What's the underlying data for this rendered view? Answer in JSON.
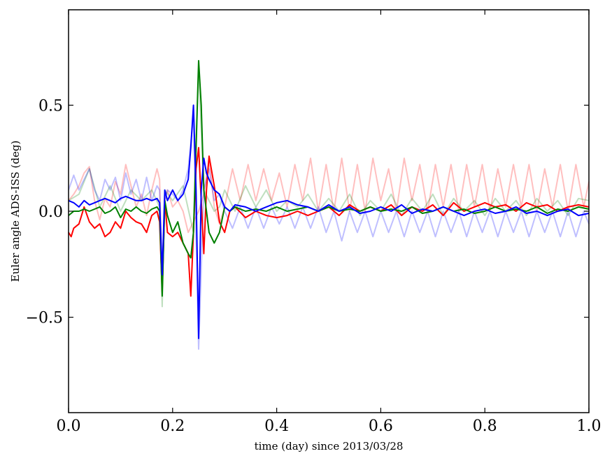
{
  "chart_data": {
    "type": "line",
    "title": "",
    "xlabel": "time (day) since 2013/03/28",
    "ylabel": "Euler angle ADS-ISS (deg)",
    "xlim": [
      0.0,
      1.0
    ],
    "ylim": [
      -0.95,
      0.95
    ],
    "xticks": [
      0.0,
      0.2,
      0.4,
      0.6,
      0.8,
      1.0
    ],
    "xtick_labels": [
      "0.0",
      "0.2",
      "0.4",
      "0.6",
      "0.8",
      "1.0"
    ],
    "yticks": [
      0.5,
      0.0,
      -0.5
    ],
    "ytick_labels": [
      "0.5",
      "0.0",
      "−0.5"
    ],
    "grid": false,
    "legend": "none",
    "series": [
      {
        "color": "#ff0000",
        "faded": true,
        "x": [
          0.0,
          0.01,
          0.02,
          0.03,
          0.04,
          0.05,
          0.06,
          0.07,
          0.08,
          0.09,
          0.1,
          0.11,
          0.12,
          0.13,
          0.14,
          0.15,
          0.16,
          0.17,
          0.175,
          0.18,
          0.185,
          0.19,
          0.2,
          0.21,
          0.22,
          0.23,
          0.24,
          0.25,
          0.26,
          0.27,
          0.28,
          0.29,
          0.3,
          0.315,
          0.33,
          0.345,
          0.36,
          0.375,
          0.39,
          0.405,
          0.42,
          0.435,
          0.45,
          0.465,
          0.48,
          0.495,
          0.51,
          0.525,
          0.54,
          0.555,
          0.57,
          0.585,
          0.6,
          0.615,
          0.63,
          0.645,
          0.66,
          0.675,
          0.69,
          0.705,
          0.72,
          0.735,
          0.75,
          0.765,
          0.78,
          0.795,
          0.81,
          0.825,
          0.84,
          0.855,
          0.87,
          0.885,
          0.9,
          0.915,
          0.93,
          0.945,
          0.96,
          0.975,
          0.99,
          1.0
        ],
        "y": [
          0.05,
          0.08,
          0.12,
          0.18,
          0.21,
          0.05,
          -0.04,
          0.06,
          0.02,
          0.14,
          0.08,
          0.22,
          0.12,
          0.02,
          0.08,
          -0.02,
          0.1,
          0.2,
          0.15,
          -0.35,
          0.05,
          0.1,
          0.02,
          0.05,
          0.0,
          -0.1,
          -0.05,
          0.0,
          0.08,
          0.25,
          0.02,
          -0.06,
          0.02,
          0.2,
          0.05,
          0.22,
          0.05,
          0.2,
          0.05,
          0.18,
          0.02,
          0.22,
          0.05,
          0.25,
          0.0,
          0.22,
          0.0,
          0.25,
          0.0,
          0.22,
          0.0,
          0.25,
          0.05,
          0.2,
          0.0,
          0.25,
          0.05,
          0.22,
          0.0,
          0.22,
          0.02,
          0.22,
          0.0,
          0.22,
          0.02,
          0.22,
          0.0,
          0.2,
          0.02,
          0.22,
          0.02,
          0.22,
          0.0,
          0.2,
          0.02,
          0.22,
          0.0,
          0.22,
          0.02,
          0.14
        ]
      },
      {
        "color": "#008000",
        "faded": true,
        "x": [
          0.0,
          0.02,
          0.04,
          0.06,
          0.08,
          0.1,
          0.12,
          0.14,
          0.16,
          0.175,
          0.18,
          0.185,
          0.2,
          0.22,
          0.24,
          0.25,
          0.26,
          0.27,
          0.28,
          0.29,
          0.3,
          0.32,
          0.34,
          0.36,
          0.38,
          0.4,
          0.42,
          0.44,
          0.46,
          0.48,
          0.5,
          0.52,
          0.54,
          0.56,
          0.58,
          0.6,
          0.62,
          0.64,
          0.66,
          0.68,
          0.7,
          0.72,
          0.74,
          0.76,
          0.78,
          0.8,
          0.82,
          0.84,
          0.86,
          0.88,
          0.9,
          0.92,
          0.94,
          0.96,
          0.98,
          1.0
        ],
        "y": [
          0.05,
          0.08,
          0.2,
          0.02,
          0.12,
          0.0,
          0.1,
          0.05,
          0.1,
          0.02,
          -0.45,
          0.1,
          0.05,
          0.12,
          -0.1,
          0.68,
          0.1,
          0.05,
          0.0,
          0.02,
          0.1,
          0.0,
          0.12,
          0.02,
          0.1,
          0.0,
          0.05,
          0.02,
          0.08,
          0.0,
          0.06,
          0.0,
          0.08,
          -0.02,
          0.05,
          0.0,
          0.08,
          -0.02,
          0.06,
          0.0,
          0.08,
          -0.02,
          0.06,
          0.0,
          0.05,
          -0.02,
          0.06,
          0.0,
          0.05,
          -0.02,
          0.06,
          0.0,
          0.05,
          -0.02,
          0.06,
          0.05
        ]
      },
      {
        "color": "#0000ff",
        "faded": true,
        "x": [
          0.0,
          0.01,
          0.02,
          0.03,
          0.04,
          0.05,
          0.06,
          0.07,
          0.08,
          0.09,
          0.1,
          0.11,
          0.12,
          0.13,
          0.14,
          0.15,
          0.16,
          0.17,
          0.175,
          0.18,
          0.185,
          0.19,
          0.2,
          0.21,
          0.22,
          0.23,
          0.24,
          0.25,
          0.26,
          0.27,
          0.28,
          0.29,
          0.3,
          0.315,
          0.33,
          0.345,
          0.36,
          0.375,
          0.39,
          0.405,
          0.42,
          0.435,
          0.45,
          0.465,
          0.48,
          0.495,
          0.51,
          0.525,
          0.54,
          0.555,
          0.57,
          0.585,
          0.6,
          0.615,
          0.63,
          0.645,
          0.66,
          0.675,
          0.69,
          0.705,
          0.72,
          0.735,
          0.75,
          0.765,
          0.78,
          0.795,
          0.81,
          0.825,
          0.84,
          0.855,
          0.87,
          0.885,
          0.9,
          0.915,
          0.93,
          0.945,
          0.96,
          0.975,
          0.99,
          1.0
        ],
        "y": [
          0.1,
          0.17,
          0.1,
          0.15,
          0.2,
          0.1,
          0.05,
          0.15,
          0.1,
          0.16,
          0.05,
          0.18,
          0.08,
          0.15,
          0.05,
          0.16,
          0.05,
          0.12,
          0.1,
          -0.3,
          0.05,
          0.1,
          0.08,
          0.05,
          0.1,
          0.2,
          0.45,
          -0.65,
          0.1,
          0.2,
          0.05,
          0.08,
          0.0,
          -0.08,
          0.02,
          -0.08,
          0.02,
          -0.08,
          0.02,
          -0.06,
          0.02,
          -0.08,
          0.02,
          -0.08,
          0.02,
          -0.1,
          0.0,
          -0.14,
          0.0,
          -0.1,
          0.0,
          -0.12,
          0.0,
          -0.1,
          0.0,
          -0.12,
          0.0,
          -0.1,
          0.0,
          -0.12,
          0.0,
          -0.1,
          0.0,
          -0.12,
          0.0,
          -0.1,
          0.0,
          -0.12,
          0.0,
          -0.1,
          0.0,
          -0.12,
          0.0,
          -0.1,
          0.0,
          -0.12,
          0.0,
          -0.12,
          0.0,
          -0.06
        ]
      },
      {
        "color": "#ff0000",
        "faded": false,
        "x": [
          0.0,
          0.005,
          0.01,
          0.02,
          0.03,
          0.04,
          0.05,
          0.06,
          0.07,
          0.08,
          0.09,
          0.1,
          0.11,
          0.12,
          0.13,
          0.14,
          0.15,
          0.16,
          0.17,
          0.175,
          0.18,
          0.185,
          0.19,
          0.2,
          0.21,
          0.22,
          0.23,
          0.235,
          0.24,
          0.245,
          0.25,
          0.26,
          0.265,
          0.27,
          0.28,
          0.29,
          0.3,
          0.31,
          0.32,
          0.34,
          0.36,
          0.38,
          0.4,
          0.42,
          0.44,
          0.46,
          0.48,
          0.5,
          0.52,
          0.54,
          0.56,
          0.58,
          0.6,
          0.62,
          0.64,
          0.66,
          0.68,
          0.7,
          0.72,
          0.74,
          0.76,
          0.78,
          0.8,
          0.82,
          0.84,
          0.86,
          0.88,
          0.9,
          0.92,
          0.94,
          0.96,
          0.98,
          1.0
        ],
        "y": [
          -0.1,
          -0.12,
          -0.08,
          -0.06,
          0.02,
          -0.05,
          -0.08,
          -0.06,
          -0.12,
          -0.1,
          -0.05,
          -0.08,
          0.0,
          -0.03,
          -0.05,
          -0.06,
          -0.1,
          -0.02,
          0.0,
          -0.05,
          -0.38,
          0.05,
          -0.1,
          -0.12,
          -0.1,
          -0.15,
          -0.2,
          -0.4,
          -0.1,
          0.2,
          0.3,
          -0.2,
          0.1,
          0.26,
          0.12,
          -0.05,
          -0.1,
          0.0,
          0.02,
          -0.03,
          0.0,
          -0.02,
          -0.03,
          -0.02,
          0.0,
          -0.02,
          0.0,
          0.02,
          -0.02,
          0.03,
          0.0,
          0.02,
          0.0,
          0.03,
          -0.02,
          0.02,
          0.0,
          0.03,
          -0.02,
          0.04,
          0.0,
          0.02,
          0.04,
          0.02,
          0.03,
          0.0,
          0.04,
          0.02,
          0.03,
          0.0,
          0.02,
          0.03,
          0.02
        ]
      },
      {
        "color": "#008000",
        "faded": false,
        "x": [
          0.0,
          0.01,
          0.02,
          0.03,
          0.04,
          0.05,
          0.06,
          0.07,
          0.08,
          0.09,
          0.1,
          0.11,
          0.12,
          0.13,
          0.14,
          0.15,
          0.16,
          0.17,
          0.175,
          0.18,
          0.185,
          0.19,
          0.2,
          0.21,
          0.22,
          0.23,
          0.235,
          0.24,
          0.245,
          0.25,
          0.255,
          0.26,
          0.265,
          0.27,
          0.28,
          0.29,
          0.3,
          0.31,
          0.32,
          0.34,
          0.36,
          0.38,
          0.4,
          0.42,
          0.44,
          0.46,
          0.48,
          0.5,
          0.52,
          0.54,
          0.56,
          0.58,
          0.6,
          0.62,
          0.64,
          0.66,
          0.68,
          0.7,
          0.72,
          0.74,
          0.76,
          0.78,
          0.8,
          0.82,
          0.84,
          0.86,
          0.88,
          0.9,
          0.92,
          0.94,
          0.96,
          0.98,
          1.0
        ],
        "y": [
          -0.02,
          0.0,
          0.0,
          0.01,
          0.0,
          0.01,
          0.02,
          -0.01,
          0.0,
          0.02,
          -0.03,
          0.01,
          0.0,
          0.02,
          0.0,
          -0.01,
          0.01,
          0.02,
          0.0,
          -0.4,
          0.05,
          -0.02,
          -0.1,
          -0.05,
          -0.15,
          -0.2,
          -0.22,
          -0.1,
          0.3,
          0.71,
          0.5,
          0.1,
          0.0,
          -0.1,
          -0.15,
          -0.1,
          0.02,
          0.0,
          0.02,
          0.0,
          0.01,
          0.0,
          0.02,
          0.0,
          0.01,
          0.02,
          0.0,
          0.02,
          0.0,
          0.01,
          0.0,
          0.02,
          0.0,
          0.01,
          0.0,
          0.02,
          -0.01,
          0.0,
          0.02,
          0.0,
          0.01,
          -0.01,
          0.0,
          0.02,
          0.0,
          0.01,
          0.0,
          0.02,
          -0.01,
          0.01,
          0.0,
          0.02,
          0.01
        ]
      },
      {
        "color": "#0000ff",
        "faded": false,
        "x": [
          0.0,
          0.01,
          0.02,
          0.03,
          0.04,
          0.05,
          0.06,
          0.07,
          0.08,
          0.09,
          0.1,
          0.11,
          0.12,
          0.13,
          0.14,
          0.15,
          0.16,
          0.17,
          0.175,
          0.18,
          0.185,
          0.19,
          0.2,
          0.21,
          0.22,
          0.23,
          0.235,
          0.24,
          0.245,
          0.25,
          0.255,
          0.26,
          0.265,
          0.27,
          0.28,
          0.29,
          0.3,
          0.31,
          0.32,
          0.34,
          0.36,
          0.38,
          0.4,
          0.42,
          0.44,
          0.46,
          0.48,
          0.5,
          0.52,
          0.54,
          0.56,
          0.58,
          0.6,
          0.62,
          0.64,
          0.66,
          0.68,
          0.7,
          0.72,
          0.74,
          0.76,
          0.78,
          0.8,
          0.82,
          0.84,
          0.86,
          0.88,
          0.9,
          0.92,
          0.94,
          0.96,
          0.98,
          1.0
        ],
        "y": [
          0.05,
          0.04,
          0.02,
          0.05,
          0.03,
          0.04,
          0.05,
          0.06,
          0.05,
          0.04,
          0.06,
          0.07,
          0.06,
          0.05,
          0.05,
          0.06,
          0.05,
          0.06,
          0.04,
          -0.3,
          0.1,
          0.05,
          0.1,
          0.05,
          0.08,
          0.15,
          0.3,
          0.5,
          0.1,
          -0.6,
          0.1,
          0.25,
          0.18,
          0.15,
          0.1,
          0.08,
          0.02,
          0.0,
          0.03,
          0.02,
          0.0,
          0.02,
          0.04,
          0.05,
          0.03,
          0.02,
          0.0,
          0.03,
          0.0,
          0.02,
          -0.01,
          0.0,
          0.02,
          0.0,
          0.03,
          -0.01,
          0.01,
          0.0,
          0.02,
          0.0,
          -0.02,
          0.0,
          0.01,
          -0.01,
          0.0,
          0.02,
          -0.01,
          0.0,
          -0.02,
          0.0,
          0.01,
          -0.02,
          -0.01
        ]
      }
    ]
  }
}
